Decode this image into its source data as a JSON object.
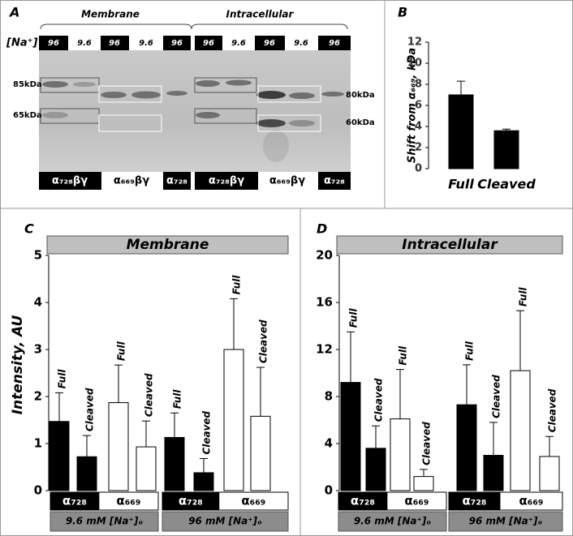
{
  "panel_a": {
    "label": "A",
    "groups": [
      "Membrane",
      "Intracellular"
    ],
    "na_label": "[Na⁺]",
    "lanes": [
      "96",
      "9.6",
      "96",
      "9.6",
      "96",
      "96",
      "9.6",
      "96",
      "9.6",
      "96"
    ],
    "markers_left": [
      "85kDa",
      "65kDa"
    ],
    "markers_right": [
      "80kDa",
      "60kDa"
    ],
    "constructs": [
      "α₇₂₈βγ",
      "α₆₆₉βγ",
      "α₇₂₈",
      "α₇₂₈βγ",
      "α₆₆₉βγ",
      "α₇₂₈"
    ]
  },
  "chart_data": [
    {
      "type": "bar",
      "panel": "B",
      "ylabel": "Shift from α₆₆₉, kDa",
      "categories": [
        "Full",
        "Cleaved"
      ],
      "values": [
        7.0,
        3.6
      ],
      "errors": [
        1.3,
        0.15
      ],
      "color": "#000000",
      "ylim": [
        0,
        12
      ],
      "yticks": [
        0,
        2,
        4,
        6,
        8,
        10,
        12
      ]
    },
    {
      "type": "bar",
      "panel": "C",
      "title": "Membrane",
      "ylabel": "Intensity, AU",
      "categories": [
        "Full",
        "Cleaved",
        "Full",
        "Cleaved",
        "Full",
        "Cleaved",
        "Full",
        "Cleaved"
      ],
      "values": [
        1.47,
        0.72,
        1.87,
        0.93,
        1.13,
        0.38,
        3.0,
        1.58
      ],
      "errors": [
        0.61,
        0.45,
        0.8,
        0.55,
        0.52,
        0.3,
        1.08,
        1.04
      ],
      "subunits": [
        "α₇₂₈",
        "α₆₆₉"
      ],
      "subunit_colors": [
        "#000000",
        "#ffffff"
      ],
      "conditions": [
        "9.6 mM [Na⁺]ₒ",
        "96 mM [Na⁺]ₒ"
      ],
      "ylim": [
        0,
        5
      ],
      "yticks": [
        0,
        1,
        2,
        3,
        4,
        5
      ]
    },
    {
      "type": "bar",
      "panel": "D",
      "title": "Intracellular",
      "categories": [
        "Full",
        "Cleaved",
        "Full",
        "Cleaved",
        "Full",
        "Cleaved",
        "Full",
        "Cleaved"
      ],
      "values": [
        9.2,
        3.6,
        6.1,
        1.2,
        7.3,
        3.0,
        10.2,
        2.9
      ],
      "errors": [
        4.3,
        1.9,
        4.2,
        0.6,
        3.4,
        2.8,
        5.1,
        1.7
      ],
      "subunits": [
        "α₇₂₈",
        "α₆₆₉"
      ],
      "subunit_colors": [
        "#000000",
        "#ffffff"
      ],
      "conditions": [
        "9.6 mM [Na⁺]ₒ",
        "96 mM [Na⁺]ₒ"
      ],
      "ylim": [
        0,
        20
      ],
      "yticks": [
        0,
        4,
        8,
        12,
        16,
        20
      ]
    }
  ]
}
